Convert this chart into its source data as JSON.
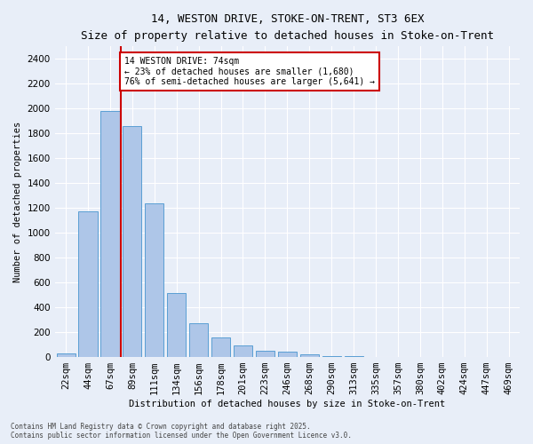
{
  "title_line1": "14, WESTON DRIVE, STOKE-ON-TRENT, ST3 6EX",
  "title_line2": "Size of property relative to detached houses in Stoke-on-Trent",
  "xlabel": "Distribution of detached houses by size in Stoke-on-Trent",
  "ylabel": "Number of detached properties",
  "categories": [
    "22sqm",
    "44sqm",
    "67sqm",
    "89sqm",
    "111sqm",
    "134sqm",
    "156sqm",
    "178sqm",
    "201sqm",
    "223sqm",
    "246sqm",
    "268sqm",
    "290sqm",
    "313sqm",
    "335sqm",
    "357sqm",
    "380sqm",
    "402sqm",
    "424sqm",
    "447sqm",
    "469sqm"
  ],
  "values": [
    28,
    1170,
    1980,
    1860,
    1240,
    515,
    275,
    155,
    90,
    50,
    42,
    20,
    10,
    5,
    3,
    2,
    1,
    1,
    1,
    1,
    1
  ],
  "bar_color": "#aec6e8",
  "bar_edge_color": "#5a9fd4",
  "vline_color": "#cc0000",
  "vline_x_index": 2,
  "annotation_text": "14 WESTON DRIVE: 74sqm\n← 23% of detached houses are smaller (1,680)\n76% of semi-detached houses are larger (5,641) →",
  "annotation_box_color": "#ffffff",
  "annotation_box_edge": "#cc0000",
  "ylim": [
    0,
    2500
  ],
  "yticks": [
    0,
    200,
    400,
    600,
    800,
    1000,
    1200,
    1400,
    1600,
    1800,
    2000,
    2200,
    2400
  ],
  "background_color": "#e8eef8",
  "grid_color": "#ffffff",
  "footer_line1": "Contains HM Land Registry data © Crown copyright and database right 2025.",
  "footer_line2": "Contains public sector information licensed under the Open Government Licence v3.0."
}
